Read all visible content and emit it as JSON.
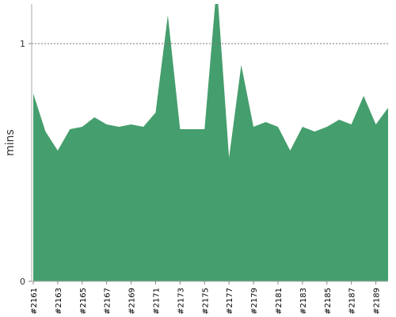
{
  "chart_data": {
    "type": "area",
    "y_label": "mins",
    "categories": [
      "#2161",
      null,
      "#2163",
      null,
      "#2165",
      null,
      "#2167",
      null,
      "#2169",
      null,
      "#2171",
      null,
      "#2173",
      null,
      "#2175",
      null,
      "#2177",
      null,
      "#2179",
      null,
      "#2181",
      null,
      "#2183",
      null,
      "#2185",
      null,
      "#2187",
      null,
      "#2189",
      null
    ],
    "values": [
      0.79,
      0.63,
      0.55,
      0.64,
      0.65,
      0.69,
      0.66,
      0.65,
      0.66,
      0.65,
      0.71,
      1.12,
      0.64,
      0.64,
      0.64,
      1.25,
      0.52,
      0.91,
      0.65,
      0.67,
      0.65,
      0.55,
      0.65,
      0.63,
      0.65,
      0.68,
      0.66,
      0.78,
      0.66,
      0.73
    ],
    "color": "#459e6d",
    "ylim": [
      0,
      1.1667
    ],
    "yticks": [
      0,
      1
    ],
    "grid": true
  }
}
